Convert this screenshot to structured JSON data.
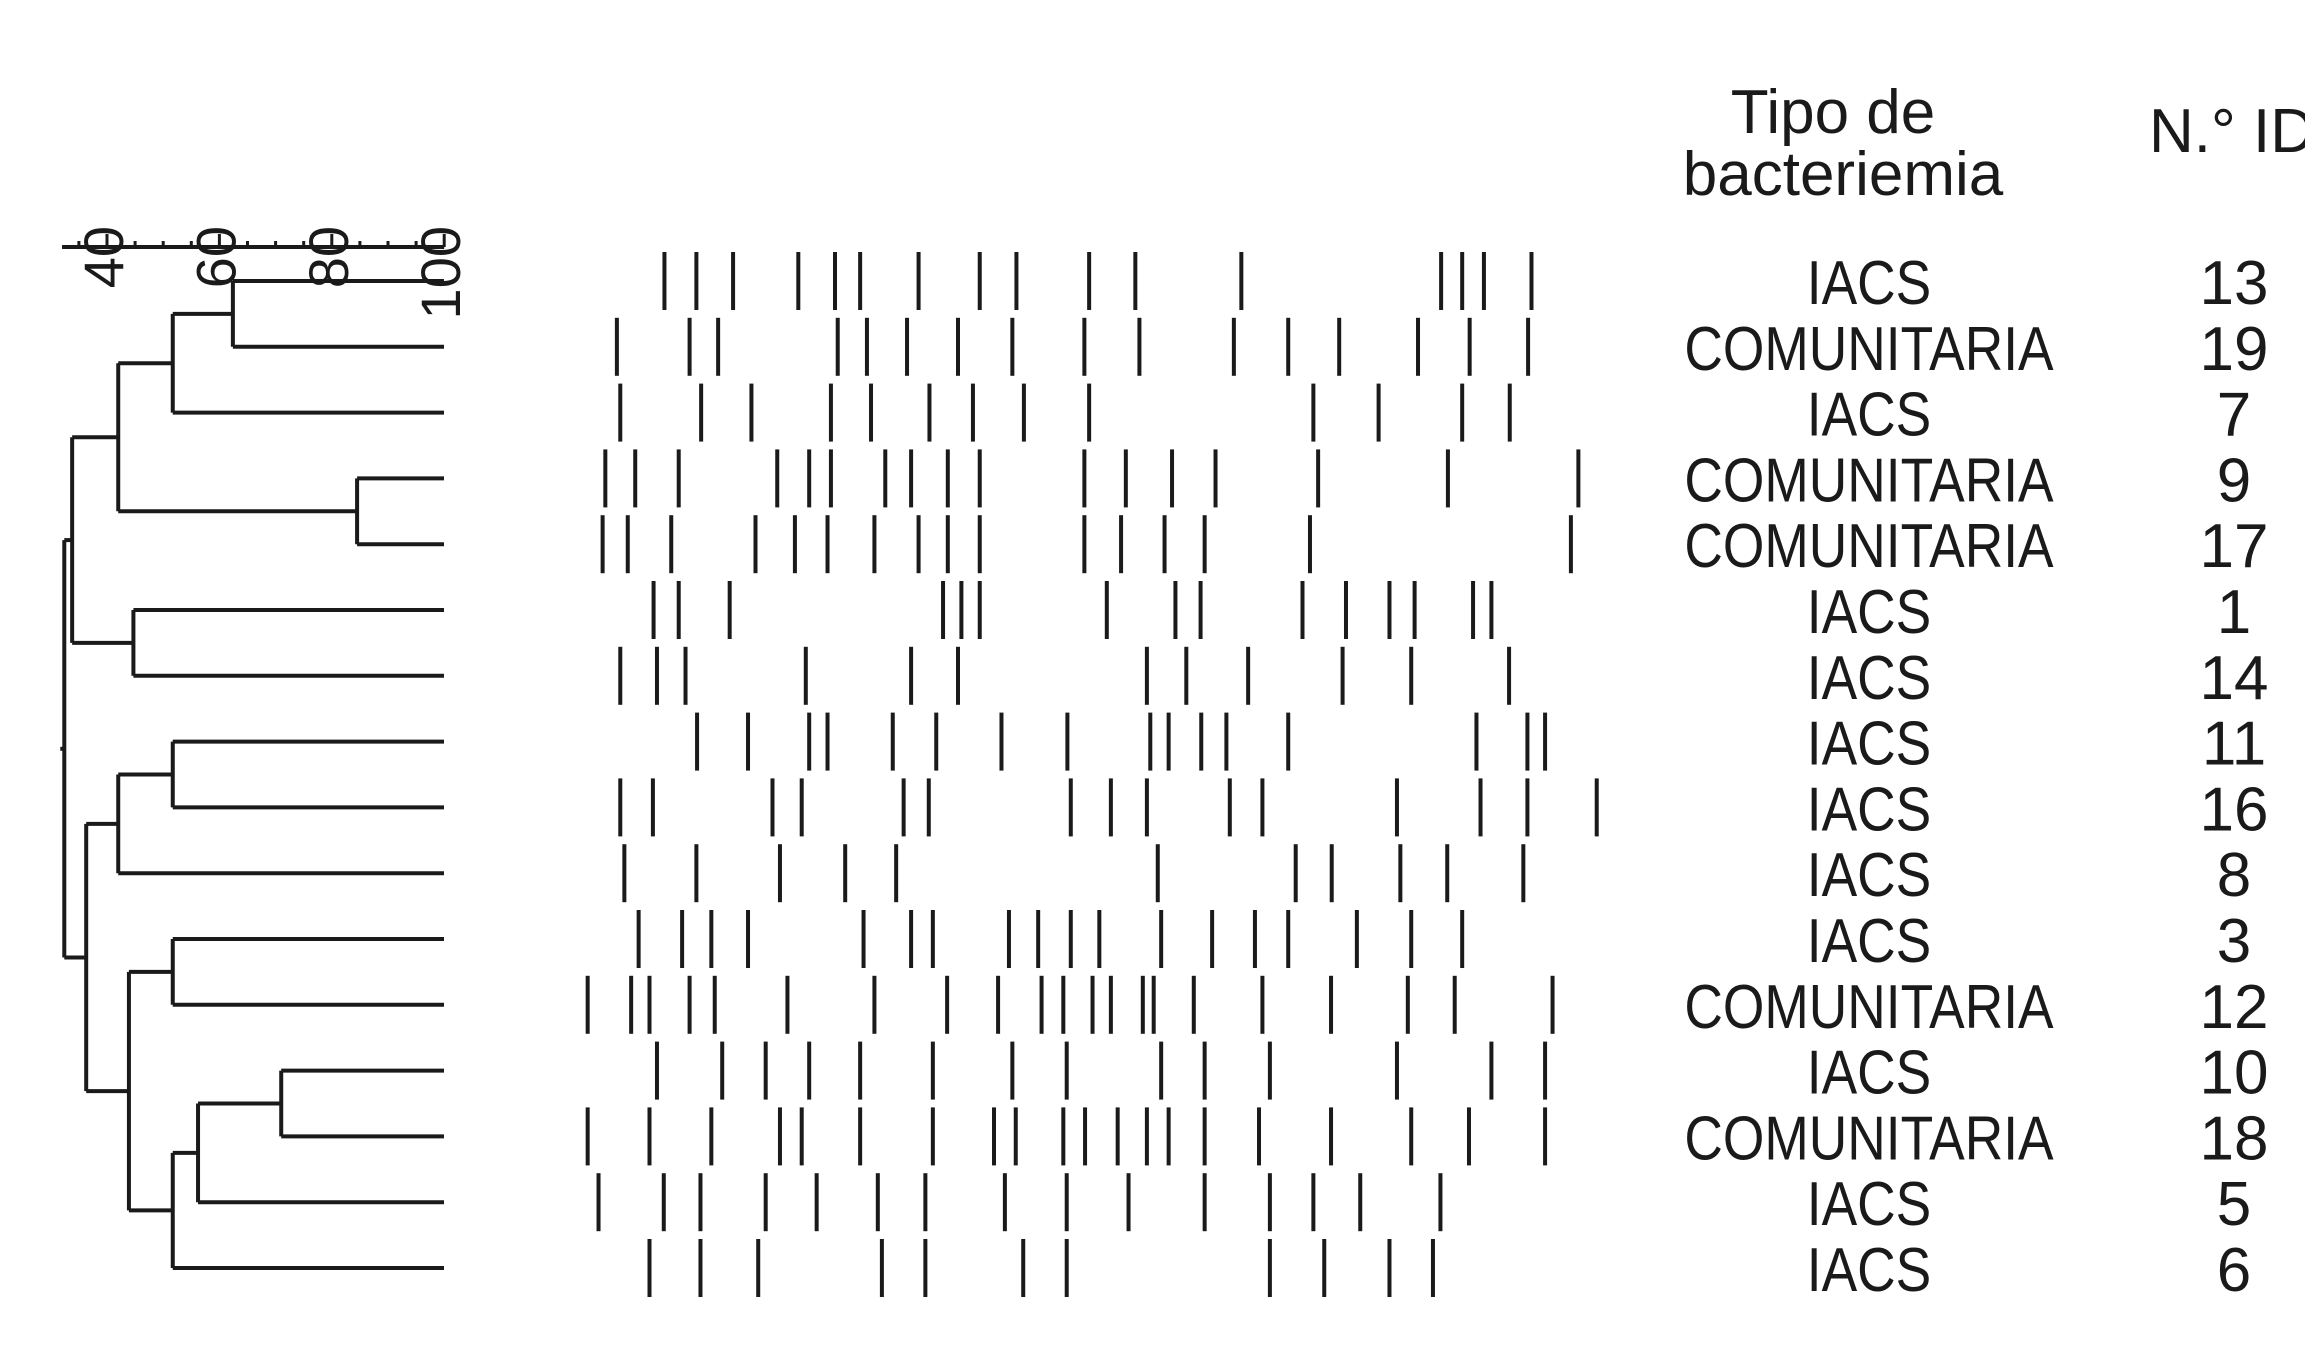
{
  "headers": {
    "type_line1": "Tipo de",
    "type_line2": "bacteriemia",
    "id": "N.° ID"
  },
  "scale": {
    "ticks": [
      "40",
      "60",
      "80",
      "100"
    ],
    "range": [
      32,
      100
    ],
    "minor_step": 5
  },
  "colors": {
    "ink": "#1a1a1a",
    "background": "#ffffff"
  },
  "rows": [
    {
      "type": "IACS",
      "id": "13"
    },
    {
      "type": "COMUNITARIA",
      "id": "19"
    },
    {
      "type": "IACS",
      "id": "7"
    },
    {
      "type": "COMUNITARIA",
      "id": "9"
    },
    {
      "type": "COMUNITARIA",
      "id": "17"
    },
    {
      "type": "IACS",
      "id": "1"
    },
    {
      "type": "IACS",
      "id": "14"
    },
    {
      "type": "IACS",
      "id": "11"
    },
    {
      "type": "IACS",
      "id": "16"
    },
    {
      "type": "IACS",
      "id": "8"
    },
    {
      "type": "IACS",
      "id": "3"
    },
    {
      "type": "COMUNITARIA",
      "id": "12"
    },
    {
      "type": "IACS",
      "id": "10"
    },
    {
      "type": "COMUNITARIA",
      "id": "18"
    },
    {
      "type": "IACS",
      "id": "5"
    },
    {
      "type": "IACS",
      "id": "6"
    }
  ],
  "dendrogram": {
    "similarity": 32.4,
    "children": [
      {
        "similarity": 33.8,
        "children": [
          {
            "similarity": 42.0,
            "children": [
              {
                "similarity": 51.7,
                "children": [
                  {
                    "similarity": 62.4,
                    "children": [
                      "13",
                      "19"
                    ]
                  },
                  "7"
                ]
              },
              {
                "similarity": 84.5,
                "children": [
                  "9",
                  "17"
                ]
              }
            ]
          },
          {
            "similarity": 44.7,
            "children": [
              "1",
              "14"
            ]
          }
        ]
      },
      {
        "similarity": 36.3,
        "children": [
          {
            "similarity": 42.0,
            "children": [
              {
                "similarity": 51.7,
                "children": [
                  "11",
                  "16"
                ]
              },
              "8"
            ]
          },
          {
            "similarity": 43.9,
            "children": [
              {
                "similarity": 51.7,
                "children": [
                  "3",
                  "12"
                ]
              },
              {
                "similarity": 51.7,
                "children": [
                  {
                    "similarity": 56.2,
                    "children": [
                      {
                        "similarity": 71.0,
                        "children": [
                          "10",
                          "18"
                        ]
                      },
                      "5"
                    ]
                  },
                  "6"
                ]
              }
            ]
          }
        ]
      }
    ]
  }
}
